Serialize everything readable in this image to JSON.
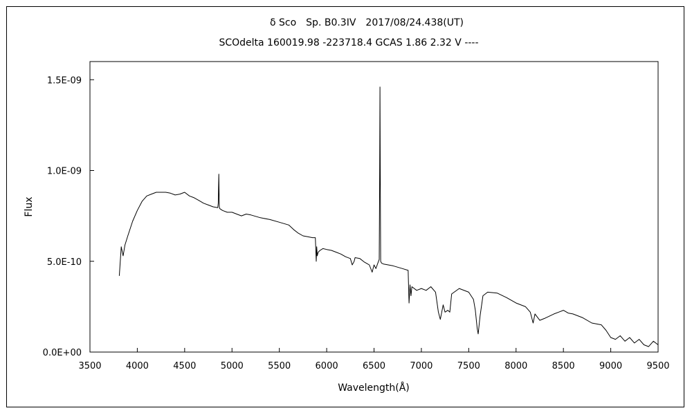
{
  "chart_data": {
    "type": "line",
    "title": "δ Sco　Sp. B0.3IV　2017/08/24.438(UT)",
    "subtitle": "SCOdelta 160019.98 -223718.4 GCAS 1.86 2.32 V ----",
    "xlabel": "Wavelength(Å)",
    "ylabel": "Flux",
    "xlim": [
      3500,
      9500
    ],
    "ylim": [
      0,
      1.6e-09
    ],
    "grid": false,
    "x_ticks": [
      3500,
      4000,
      4500,
      5000,
      5500,
      6000,
      6500,
      7000,
      7500,
      8000,
      8500,
      9000,
      9500
    ],
    "x_tick_labels": [
      "3500",
      "4000",
      "4500",
      "5000",
      "5500",
      "6000",
      "6500",
      "7000",
      "7500",
      "8000",
      "8500",
      "9000",
      "9500"
    ],
    "y_ticks": [
      0,
      5e-10,
      1e-09,
      1.5e-09
    ],
    "y_tick_labels": [
      "0.0E+00",
      "5.0E-10",
      "1.0E-09",
      "1.5E-09"
    ],
    "series_color": "#000000",
    "series": [
      {
        "x": [
          3810,
          3830,
          3850,
          3870,
          3900,
          3950,
          4000,
          4050,
          4100,
          4150,
          4200,
          4250,
          4300,
          4350,
          4400,
          4450,
          4500,
          4550,
          4600,
          4650,
          4700,
          4750,
          4800,
          4850,
          4855,
          4861,
          4866,
          4870,
          4900,
          4950,
          5000,
          5050,
          5100,
          5150,
          5200,
          5300,
          5400,
          5500,
          5600,
          5650,
          5700,
          5750,
          5800,
          5850,
          5880,
          5890,
          5895,
          5900,
          5910,
          5930,
          5960,
          6000,
          6050,
          6100,
          6150,
          6200,
          6250,
          6270,
          6290,
          6300,
          6350,
          6400,
          6450,
          6480,
          6500,
          6520,
          6540,
          6555,
          6560,
          6563,
          6566,
          6570,
          6580,
          6600,
          6700,
          6800,
          6860,
          6870,
          6880,
          6890,
          6900,
          6950,
          7000,
          7050,
          7100,
          7150,
          7180,
          7200,
          7230,
          7250,
          7280,
          7300,
          7320,
          7400,
          7500,
          7550,
          7570,
          7590,
          7600,
          7620,
          7650,
          7700,
          7800,
          7900,
          8000,
          8100,
          8150,
          8180,
          8200,
          8250,
          8300,
          8400,
          8450,
          8500,
          8550,
          8600,
          8700,
          8800,
          8900,
          8950,
          9000,
          9050,
          9100,
          9150,
          9200,
          9250,
          9300,
          9350,
          9400,
          9450,
          9500
        ],
        "y": [
          4.2e-10,
          5.8e-10,
          5.3e-10,
          5.9e-10,
          6.4e-10,
          7.2e-10,
          7.8e-10,
          8.3e-10,
          8.6e-10,
          8.7e-10,
          8.8e-10,
          8.8e-10,
          8.8e-10,
          8.75e-10,
          8.65e-10,
          8.7e-10,
          8.8e-10,
          8.6e-10,
          8.5e-10,
          8.35e-10,
          8.2e-10,
          8.1e-10,
          8e-10,
          7.95e-10,
          8.2e-10,
          9.8e-10,
          8e-10,
          7.9e-10,
          7.8e-10,
          7.7e-10,
          7.7e-10,
          7.6e-10,
          7.5e-10,
          7.6e-10,
          7.55e-10,
          7.4e-10,
          7.3e-10,
          7.15e-10,
          7e-10,
          6.75e-10,
          6.55e-10,
          6.4e-10,
          6.35e-10,
          6.3e-10,
          6.3e-10,
          5e-10,
          5.8e-10,
          5.3e-10,
          5.5e-10,
          5.6e-10,
          5.7e-10,
          5.65e-10,
          5.6e-10,
          5.5e-10,
          5.4e-10,
          5.25e-10,
          5.15e-10,
          4.8e-10,
          5e-10,
          5.2e-10,
          5.15e-10,
          4.95e-10,
          4.8e-10,
          4.4e-10,
          4.8e-10,
          4.6e-10,
          4.9e-10,
          5.1e-10,
          1e-09,
          1.46e-09,
          1e-09,
          5e-10,
          4.9e-10,
          4.85e-10,
          4.75e-10,
          4.6e-10,
          4.5e-10,
          2.7e-10,
          3.7e-10,
          3.1e-10,
          3.6e-10,
          3.4e-10,
          3.5e-10,
          3.4e-10,
          3.6e-10,
          3.3e-10,
          2.2e-10,
          1.8e-10,
          2.6e-10,
          2.2e-10,
          2.3e-10,
          2.2e-10,
          3.2e-10,
          3.5e-10,
          3.3e-10,
          2.9e-10,
          2.3e-10,
          1.3e-10,
          1e-10,
          2e-10,
          3.1e-10,
          3.3e-10,
          3.25e-10,
          3e-10,
          2.7e-10,
          2.5e-10,
          2.2e-10,
          1.6e-10,
          2.1e-10,
          1.75e-10,
          1.85e-10,
          2.1e-10,
          2.2e-10,
          2.3e-10,
          2.15e-10,
          2.1e-10,
          1.9e-10,
          1.6e-10,
          1.5e-10,
          1.2e-10,
          8e-11,
          7e-11,
          9e-11,
          6e-11,
          8e-11,
          5e-11,
          7e-11,
          4e-11,
          3e-11,
          6e-11,
          4e-11
        ]
      }
    ]
  }
}
